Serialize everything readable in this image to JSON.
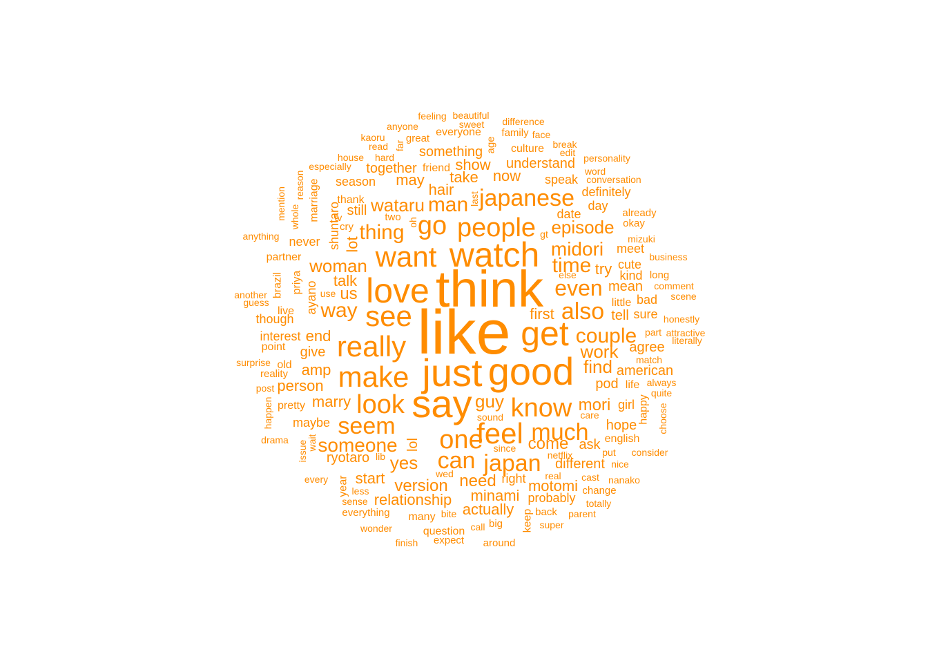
{
  "wordcloud": {
    "color": "#FF8C00",
    "words": [
      "like",
      "think",
      "just",
      "say",
      "good",
      "watch",
      "love",
      "get",
      "want",
      "people",
      "really",
      "see",
      "make",
      "go",
      "feel",
      "know",
      "look",
      "one",
      "japanese",
      "also",
      "much",
      "japan",
      "seem",
      "can",
      "even",
      "couple",
      "time",
      "man",
      "someone",
      "midori",
      "thing",
      "wataru",
      "episode",
      "woman",
      "way",
      "work",
      "find",
      "guy",
      "yes",
      "mori",
      "version",
      "relationship",
      "come",
      "minami",
      "motomi",
      "actually",
      "need",
      "first",
      "marry",
      "us",
      "start",
      "talk",
      "end",
      "amp",
      "hair",
      "person",
      "ryotaro",
      "take",
      "something",
      "now",
      "show",
      "may",
      "understand",
      "lot",
      "together",
      "ask",
      "tell",
      "different",
      "give",
      "probably",
      "cute",
      "hope",
      "still",
      "agree",
      "pod",
      "mean",
      "american",
      "kind",
      "try",
      "date",
      "day",
      "season",
      "never",
      "interest",
      "culture",
      "speak",
      "definitely",
      "shuntaro",
      "partner",
      "though",
      "point",
      "ayano",
      "priya",
      "bad",
      "sure",
      "meet",
      "little",
      "girl",
      "lol",
      "maybe",
      "many",
      "pretty",
      "life",
      "always",
      "english",
      "right",
      "thank",
      "friend",
      "question",
      "keep",
      "super",
      "back",
      "cast",
      "change",
      "real",
      "netflix",
      "since",
      "sound",
      "year",
      "sense",
      "everything",
      "age",
      "family",
      "face",
      "break",
      "edit",
      "personality",
      "word",
      "conversation",
      "already",
      "okay",
      "mizuki",
      "business",
      "long",
      "comment",
      "scene",
      "honestly",
      "part",
      "attractive",
      "literally",
      "match",
      "quite",
      "choose",
      "happy",
      "care",
      "consider",
      "nice",
      "nanako",
      "totally",
      "parent",
      "call",
      "big",
      "expect",
      "around",
      "finish",
      "wonder",
      "bite",
      "less",
      "every",
      "issue",
      "wait",
      "drama",
      "happen",
      "post",
      "surprise",
      "reality",
      "old",
      "live",
      "guess",
      "another",
      "brazil",
      "use",
      "anything",
      "mention",
      "whole",
      "reason",
      "marriage",
      "especially",
      "house",
      "hard",
      "read",
      "kaoru",
      "anyone",
      "feeling",
      "beautiful",
      "sweet",
      "difference",
      "everyone",
      "great",
      "far",
      "two",
      "oh",
      "cry",
      "tv",
      "last",
      "gt",
      "else",
      "wed",
      "lib",
      "put"
    ]
  }
}
